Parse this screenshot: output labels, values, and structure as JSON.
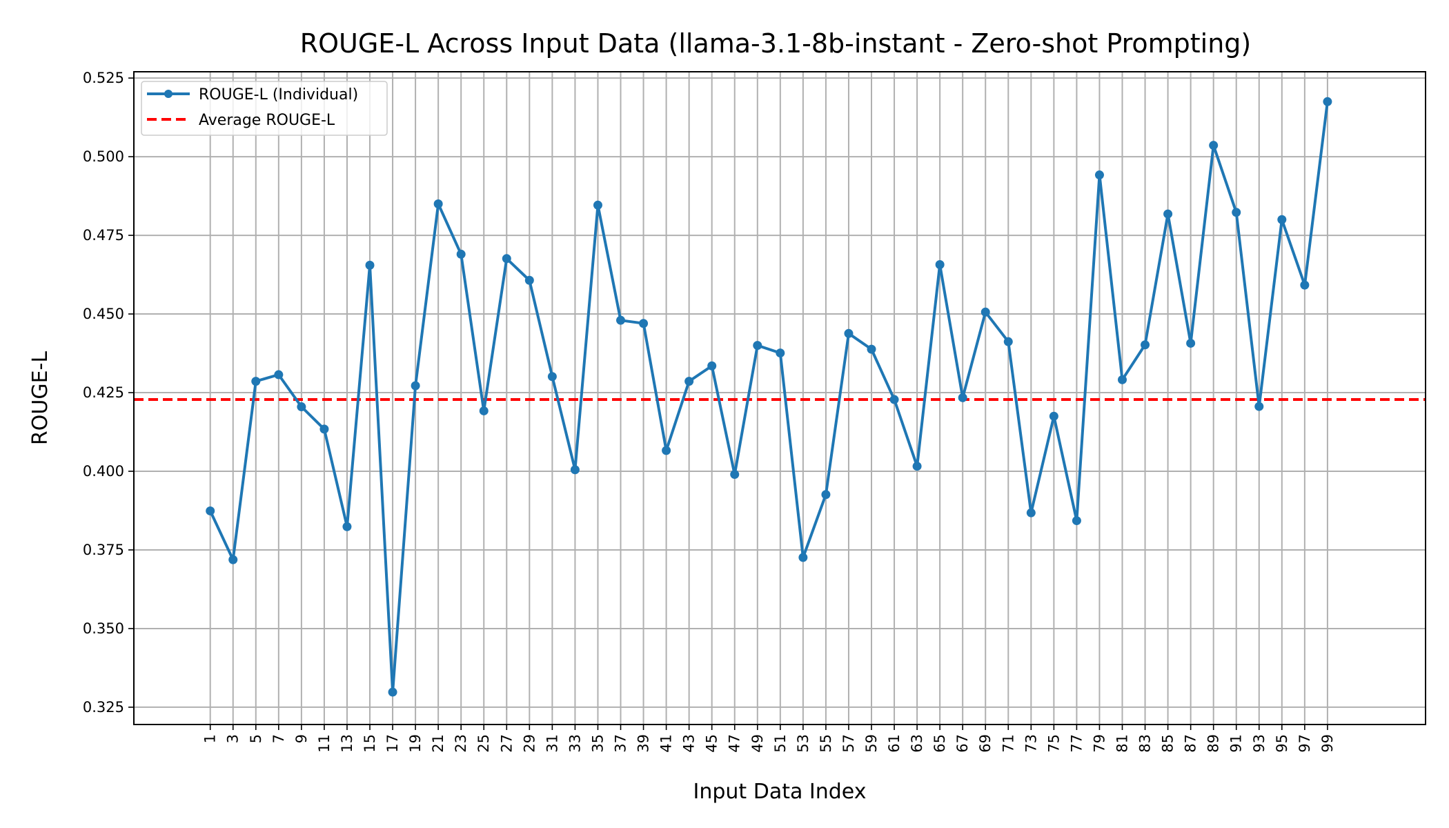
{
  "chart_data": {
    "type": "line",
    "title": "ROUGE-L Across Input Data (llama-3.1-8b-instant - Zero-shot Prompting)",
    "xlabel": "Input Data Index",
    "ylabel": "ROUGE-L",
    "x": [
      1,
      3,
      5,
      7,
      9,
      11,
      13,
      15,
      17,
      19,
      21,
      23,
      25,
      27,
      29,
      31,
      33,
      35,
      37,
      39,
      41,
      43,
      45,
      47,
      49,
      51,
      53,
      55,
      57,
      59,
      61,
      63,
      65,
      67,
      69,
      71,
      73,
      75,
      77,
      79,
      81,
      83,
      85,
      87,
      89,
      91,
      93,
      95,
      97,
      99
    ],
    "xlim": [
      -5.7,
      107.6
    ],
    "ylim": [
      0.3195,
      0.527
    ],
    "yticks": [
      "0.325",
      "0.350",
      "0.375",
      "0.400",
      "0.425",
      "0.450",
      "0.475",
      "0.500",
      "0.525"
    ],
    "xtick_rotation": 90,
    "grid": true,
    "legend_position": "top-left",
    "series": [
      {
        "name": "ROUGE-L (Individual)",
        "color": "#1f77b4",
        "style": "solid-with-markers",
        "values": [
          0.3874,
          0.3719,
          0.4286,
          0.4307,
          0.4205,
          0.4134,
          0.3824,
          0.4655,
          0.3298,
          0.4272,
          0.485,
          0.469,
          0.4192,
          0.4676,
          0.4607,
          0.4301,
          0.4005,
          0.4846,
          0.448,
          0.447,
          0.4066,
          0.4286,
          0.4335,
          0.399,
          0.44,
          0.4376,
          0.3726,
          0.3926,
          0.4438,
          0.4388,
          0.4228,
          0.4016,
          0.4657,
          0.4234,
          0.4506,
          0.4412,
          0.3868,
          0.4175,
          0.3843,
          0.4942,
          0.4291,
          0.4402,
          0.4818,
          0.4407,
          0.5036,
          0.4823,
          0.4206,
          0.48,
          0.4592,
          0.5175
        ]
      },
      {
        "name": "Average ROUGE-L",
        "color": "#ff0000",
        "style": "dashed",
        "value": 0.4228
      }
    ]
  }
}
